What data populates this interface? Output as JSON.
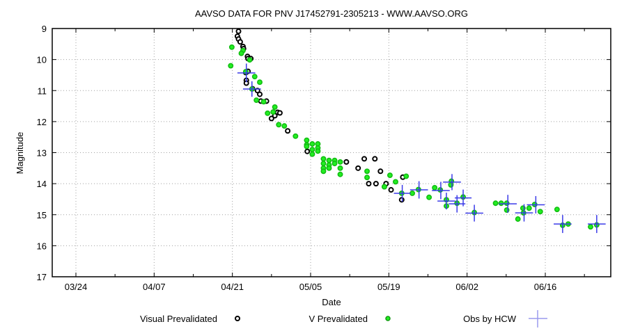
{
  "chart_data": {
    "type": "scatter",
    "title": "AAVSO DATA FOR PNV J17452791-2305213 - WWW.AAVSO.ORG",
    "xlabel": "Date",
    "ylabel": "Magnitude",
    "x_unit": "days since 03/24",
    "xlim": [
      -4.2,
      95.6
    ],
    "ylim": [
      17,
      9
    ],
    "y_inverted": true,
    "grid": true,
    "x_ticks": [
      {
        "label": "03/24",
        "value": 0
      },
      {
        "label": "04/07",
        "value": 14
      },
      {
        "label": "04/21",
        "value": 28
      },
      {
        "label": "05/05",
        "value": 42
      },
      {
        "label": "05/19",
        "value": 56
      },
      {
        "label": "06/02",
        "value": 70
      },
      {
        "label": "06/16",
        "value": 84
      }
    ],
    "x_minor_ticks": [
      7,
      21,
      35,
      49,
      63,
      77,
      91
    ],
    "y_ticks": [
      {
        "label": "9",
        "value": 9
      },
      {
        "label": "10",
        "value": 10
      },
      {
        "label": "11",
        "value": 11
      },
      {
        "label": "12",
        "value": 12
      },
      {
        "label": "13",
        "value": 13
      },
      {
        "label": "14",
        "value": 14
      },
      {
        "label": "15",
        "value": 15
      },
      {
        "label": "16",
        "value": 16
      },
      {
        "label": "17",
        "value": 17
      }
    ],
    "legend_position": "bottom",
    "series": [
      {
        "name": "Visual Prevalidated",
        "marker": "black-ring",
        "color": "#000000",
        "points": [
          [
            29.1,
            9.09
          ],
          [
            28.9,
            9.25
          ],
          [
            29.1,
            9.34
          ],
          [
            29.4,
            9.43
          ],
          [
            29.9,
            9.58
          ],
          [
            30.0,
            9.65
          ],
          [
            30.7,
            9.9
          ],
          [
            30.8,
            9.97
          ],
          [
            31.3,
            9.97
          ],
          [
            30.8,
            10.38
          ],
          [
            30.4,
            10.42
          ],
          [
            30.5,
            10.67
          ],
          [
            30.5,
            10.76
          ],
          [
            31.6,
            10.94
          ],
          [
            32.5,
            11.0
          ],
          [
            32.9,
            11.12
          ],
          [
            33.1,
            11.34
          ],
          [
            34.1,
            11.34
          ],
          [
            36.1,
            11.7
          ],
          [
            36.5,
            11.72
          ],
          [
            35.6,
            11.81
          ],
          [
            35.0,
            11.9
          ],
          [
            37.9,
            12.3
          ],
          [
            41.4,
            12.96
          ],
          [
            48.4,
            13.3
          ],
          [
            50.5,
            13.5
          ],
          [
            51.6,
            13.2
          ],
          [
            53.5,
            13.2
          ],
          [
            54.5,
            13.6
          ],
          [
            52.4,
            14.0
          ],
          [
            53.7,
            14.0
          ],
          [
            55.5,
            14.0
          ],
          [
            56.4,
            14.2
          ],
          [
            58.5,
            13.79
          ],
          [
            58.3,
            14.52
          ]
        ]
      },
      {
        "name": "V Prevalidated",
        "marker": "green-ring",
        "color": "#22ee22",
        "points": [
          [
            27.9,
            9.6
          ],
          [
            27.7,
            10.2
          ],
          [
            29.9,
            9.71
          ],
          [
            29.6,
            9.8
          ],
          [
            31.1,
            10.01
          ],
          [
            30.4,
            10.39
          ],
          [
            32.0,
            10.55
          ],
          [
            32.9,
            10.73
          ],
          [
            31.5,
            10.95
          ],
          [
            32.3,
            11.31
          ],
          [
            33.6,
            11.36
          ],
          [
            35.6,
            11.53
          ],
          [
            34.3,
            11.73
          ],
          [
            35.3,
            11.69
          ],
          [
            36.3,
            12.1
          ],
          [
            37.3,
            12.14
          ],
          [
            39.3,
            12.47
          ],
          [
            41.3,
            12.6
          ],
          [
            41.3,
            12.75
          ],
          [
            41.3,
            12.8
          ],
          [
            42.3,
            12.72
          ],
          [
            42.3,
            12.9
          ],
          [
            42.3,
            13.05
          ],
          [
            43.3,
            12.72
          ],
          [
            43.3,
            12.85
          ],
          [
            43.3,
            12.95
          ],
          [
            44.3,
            13.2
          ],
          [
            44.3,
            13.35
          ],
          [
            44.3,
            13.5
          ],
          [
            44.3,
            13.6
          ],
          [
            45.3,
            13.25
          ],
          [
            45.3,
            13.4
          ],
          [
            45.3,
            13.5
          ],
          [
            46.3,
            13.25
          ],
          [
            46.3,
            13.35
          ],
          [
            47.3,
            13.3
          ],
          [
            47.3,
            13.5
          ],
          [
            47.3,
            13.7
          ],
          [
            52.1,
            13.6
          ],
          [
            52.1,
            13.8
          ],
          [
            55.2,
            14.1
          ],
          [
            56.2,
            13.73
          ],
          [
            57.2,
            13.94
          ],
          [
            55.2,
            14.1
          ],
          [
            59.1,
            13.76
          ],
          [
            58.3,
            14.31
          ],
          [
            60.2,
            14.31
          ],
          [
            61.3,
            14.19
          ],
          [
            63.2,
            14.44
          ],
          [
            64.2,
            14.13
          ],
          [
            65.2,
            14.2
          ],
          [
            67.2,
            13.92
          ],
          [
            67.1,
            14.04
          ],
          [
            66.3,
            14.52
          ],
          [
            66.3,
            14.72
          ],
          [
            68.2,
            14.63
          ],
          [
            69.3,
            14.43
          ],
          [
            71.3,
            14.93
          ],
          [
            75.1,
            14.63
          ],
          [
            76.1,
            14.63
          ],
          [
            77.1,
            14.63
          ],
          [
            77.1,
            14.85
          ],
          [
            79.1,
            15.14
          ],
          [
            80.0,
            14.79
          ],
          [
            80.1,
            14.94
          ],
          [
            81.1,
            14.79
          ],
          [
            82.1,
            14.67
          ],
          [
            83.1,
            14.9
          ],
          [
            86.1,
            14.83
          ],
          [
            87.1,
            15.34
          ],
          [
            88.1,
            15.3
          ],
          [
            92.1,
            15.39
          ],
          [
            93.2,
            15.33
          ]
        ]
      },
      {
        "name": "Obs by HCW",
        "marker": "blue-cross-errorbar",
        "color": "#3a3ae8",
        "points": [
          [
            30.5,
            10.43,
            1.6,
            0.3
          ],
          [
            31.5,
            10.95,
            1.6,
            0.25
          ],
          [
            58.4,
            14.31,
            1.5,
            0.27
          ],
          [
            61.4,
            14.2,
            1.6,
            0.28
          ],
          [
            65.3,
            14.22,
            1.6,
            0.28
          ],
          [
            67.3,
            13.95,
            1.6,
            0.26
          ],
          [
            66.3,
            14.56,
            1.6,
            0.27
          ],
          [
            68.2,
            14.65,
            1.5,
            0.28
          ],
          [
            69.3,
            14.46,
            1.5,
            0.27
          ],
          [
            71.3,
            14.95,
            1.6,
            0.27
          ],
          [
            77.3,
            14.65,
            1.6,
            0.29
          ],
          [
            80.2,
            14.94,
            1.6,
            0.28
          ],
          [
            82.3,
            14.68,
            1.6,
            0.28
          ],
          [
            87.1,
            15.3,
            1.6,
            0.29
          ],
          [
            93.2,
            15.3,
            1.6,
            0.29
          ]
        ]
      }
    ]
  },
  "legend": [
    {
      "label": "Visual Prevalidated",
      "marker": "black-ring"
    },
    {
      "label": "V Prevalidated",
      "marker": "green-ring"
    },
    {
      "label": "Obs by HCW",
      "marker": "blue-cross"
    }
  ],
  "colors": {
    "frame": "#000000",
    "grid": "#a0a0a0",
    "visual": "#000000",
    "v": "#22ee22",
    "v_ring": "#119911",
    "hcw": "#3a3ae8",
    "hcw_legend": "#9a9aee"
  }
}
